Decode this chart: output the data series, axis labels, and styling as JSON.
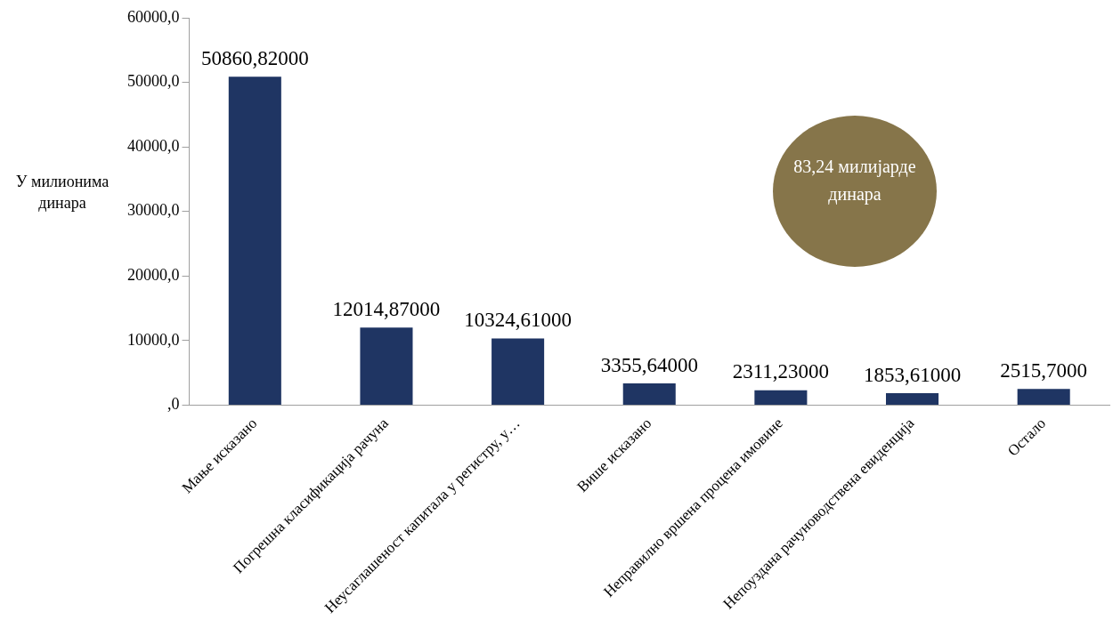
{
  "chart_data": {
    "type": "bar",
    "ylabel": "У милионима динара",
    "categories": [
      "Мање исказано",
      "Погрешна класификација рачуна",
      "Неусаглашеност капитала у регистру, у…",
      "Више исказано",
      "Неправилно вршена процена имовине",
      "Непоуздана рачуноводствена евиденција",
      "Остало"
    ],
    "values": [
      50860.82,
      12014.87,
      10324.61,
      3355.64,
      2311.23,
      1853.61,
      2515.7
    ],
    "value_labels": [
      "50860,82000",
      "12014,87000",
      "10324,61000",
      "3355,64000",
      "2311,23000",
      "1853,61000",
      "2515,7000"
    ],
    "color": "#1f3563",
    "ylim": [
      0,
      60000
    ],
    "yticks": [
      {
        "value": 0,
        "label": ",0"
      },
      {
        "value": 10000,
        "label": "10000,0"
      },
      {
        "value": 20000,
        "label": "20000,0"
      },
      {
        "value": 30000,
        "label": "30000,0"
      },
      {
        "value": 40000,
        "label": "40000,0"
      },
      {
        "value": 50000,
        "label": "50000,0"
      },
      {
        "value": 60000,
        "label": "60000,0"
      }
    ],
    "annotations": [
      "83,24 милијарде динара"
    ],
    "grid": false,
    "legend": false
  }
}
